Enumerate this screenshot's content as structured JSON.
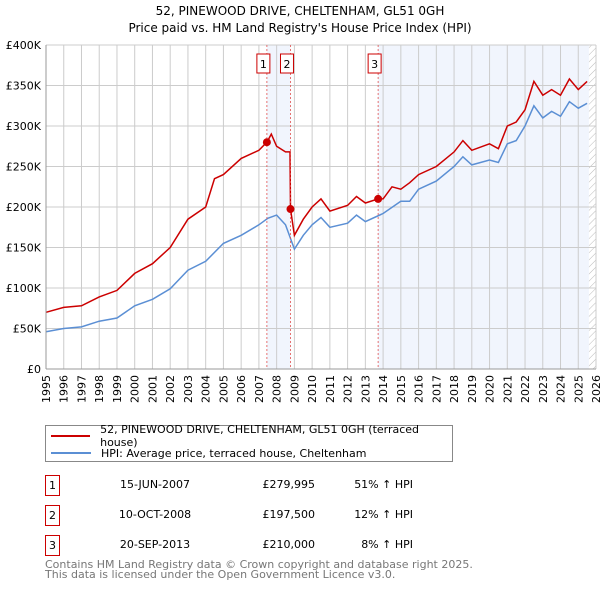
{
  "chart_data": {
    "type": "line",
    "title": "52, PINEWOOD DRIVE, CHELTENHAM, GL51 0GH",
    "subtitle": "Price paid vs. HM Land Registry's House Price Index (HPI)",
    "xlim": [
      1995,
      2026
    ],
    "ylim": [
      0,
      400000
    ],
    "yticks": [
      {
        "v": 0,
        "label": "£0"
      },
      {
        "v": 50000,
        "label": "£50K"
      },
      {
        "v": 100000,
        "label": "£100K"
      },
      {
        "v": 150000,
        "label": "£150K"
      },
      {
        "v": 200000,
        "label": "£200K"
      },
      {
        "v": 250000,
        "label": "£250K"
      },
      {
        "v": 300000,
        "label": "£300K"
      },
      {
        "v": 350000,
        "label": "£350K"
      },
      {
        "v": 400000,
        "label": "£400K"
      }
    ],
    "xticks": [
      "1995",
      "1996",
      "1997",
      "1998",
      "1999",
      "2000",
      "2001",
      "2002",
      "2003",
      "2004",
      "2005",
      "2006",
      "2007",
      "2008",
      "2009",
      "2010",
      "2011",
      "2012",
      "2013",
      "2014",
      "2015",
      "2016",
      "2017",
      "2018",
      "2019",
      "2020",
      "2021",
      "2022",
      "2023",
      "2024",
      "2025",
      "2026"
    ],
    "grid": true,
    "series": [
      {
        "name": "52, PINEWOOD DRIVE, CHELTENHAM, GL51 0GH (terraced house)",
        "color": "#cc0000",
        "x": [
          1995,
          1996,
          1997,
          1998,
          1999,
          2000,
          2001,
          2002,
          2003,
          2004,
          2004.5,
          2005,
          2006,
          2007,
          2007.45,
          2007.7,
          2008,
          2008.5,
          2008.75,
          2008.78,
          2009,
          2009.5,
          2010,
          2010.5,
          2011,
          2012,
          2012.5,
          2013,
          2013.72,
          2014,
          2014.5,
          2015,
          2015.5,
          2016,
          2017,
          2018,
          2018.5,
          2019,
          2020,
          2020.5,
          2021,
          2021.5,
          2022,
          2022.5,
          2023,
          2023.5,
          2024,
          2024.5,
          2025,
          2025.5
        ],
        "y": [
          70000,
          76000,
          78000,
          89000,
          97000,
          118000,
          130000,
          150000,
          185000,
          200000,
          235000,
          240000,
          260000,
          270000,
          279995,
          290000,
          275000,
          268000,
          268000,
          197500,
          165000,
          185000,
          200000,
          210000,
          195000,
          202000,
          213000,
          205000,
          210000,
          210000,
          225000,
          222000,
          230000,
          240000,
          250000,
          268000,
          282000,
          270000,
          278000,
          272000,
          300000,
          305000,
          320000,
          355000,
          338000,
          345000,
          338000,
          358000,
          345000,
          355000
        ]
      },
      {
        "name": "HPI: Average price, terraced house, Cheltenham",
        "color": "#5b8fd4",
        "x": [
          1995,
          1996,
          1997,
          1998,
          1999,
          2000,
          2001,
          2002,
          2003,
          2004,
          2005,
          2006,
          2007,
          2007.5,
          2008,
          2008.5,
          2009,
          2009.5,
          2010,
          2010.5,
          2011,
          2012,
          2012.5,
          2013,
          2014,
          2015,
          2015.5,
          2016,
          2017,
          2018,
          2018.5,
          2019,
          2020,
          2020.5,
          2021,
          2021.5,
          2022,
          2022.5,
          2023,
          2023.5,
          2024,
          2024.5,
          2025,
          2025.5
        ],
        "y": [
          46000,
          50000,
          52000,
          59000,
          63000,
          78000,
          86000,
          99000,
          122000,
          133000,
          155000,
          165000,
          178000,
          186000,
          190000,
          178000,
          148000,
          165000,
          178000,
          187000,
          175000,
          180000,
          190000,
          182000,
          192000,
          207000,
          207000,
          222000,
          232000,
          250000,
          262000,
          252000,
          258000,
          255000,
          278000,
          282000,
          300000,
          325000,
          310000,
          318000,
          312000,
          330000,
          322000,
          328000
        ]
      }
    ],
    "sales": [
      {
        "n": "1",
        "x": 2007.45,
        "y": 279995
      },
      {
        "n": "2",
        "x": 2008.78,
        "y": 197500
      },
      {
        "n": "3",
        "x": 2013.72,
        "y": 210000
      }
    ],
    "shaded": [
      [
        2007.45,
        2008.78
      ],
      [
        2013.72,
        2025.6
      ]
    ],
    "forecast_start": 2025.6
  },
  "legend": [
    "52, PINEWOOD DRIVE, CHELTENHAM, GL51 0GH (terraced house)",
    "HPI: Average price, terraced house, Cheltenham"
  ],
  "table": [
    {
      "n": "1",
      "date": "15-JUN-2007",
      "price": "£279,995",
      "hpi": "51% ↑ HPI"
    },
    {
      "n": "2",
      "date": "10-OCT-2008",
      "price": "£197,500",
      "hpi": "12% ↑ HPI"
    },
    {
      "n": "3",
      "date": "20-SEP-2013",
      "price": "£210,000",
      "hpi": "8% ↑ HPI"
    }
  ],
  "footer": [
    "Contains HM Land Registry data © Crown copyright and database right 2025.",
    "This data is licensed under the Open Government Licence v3.0."
  ]
}
